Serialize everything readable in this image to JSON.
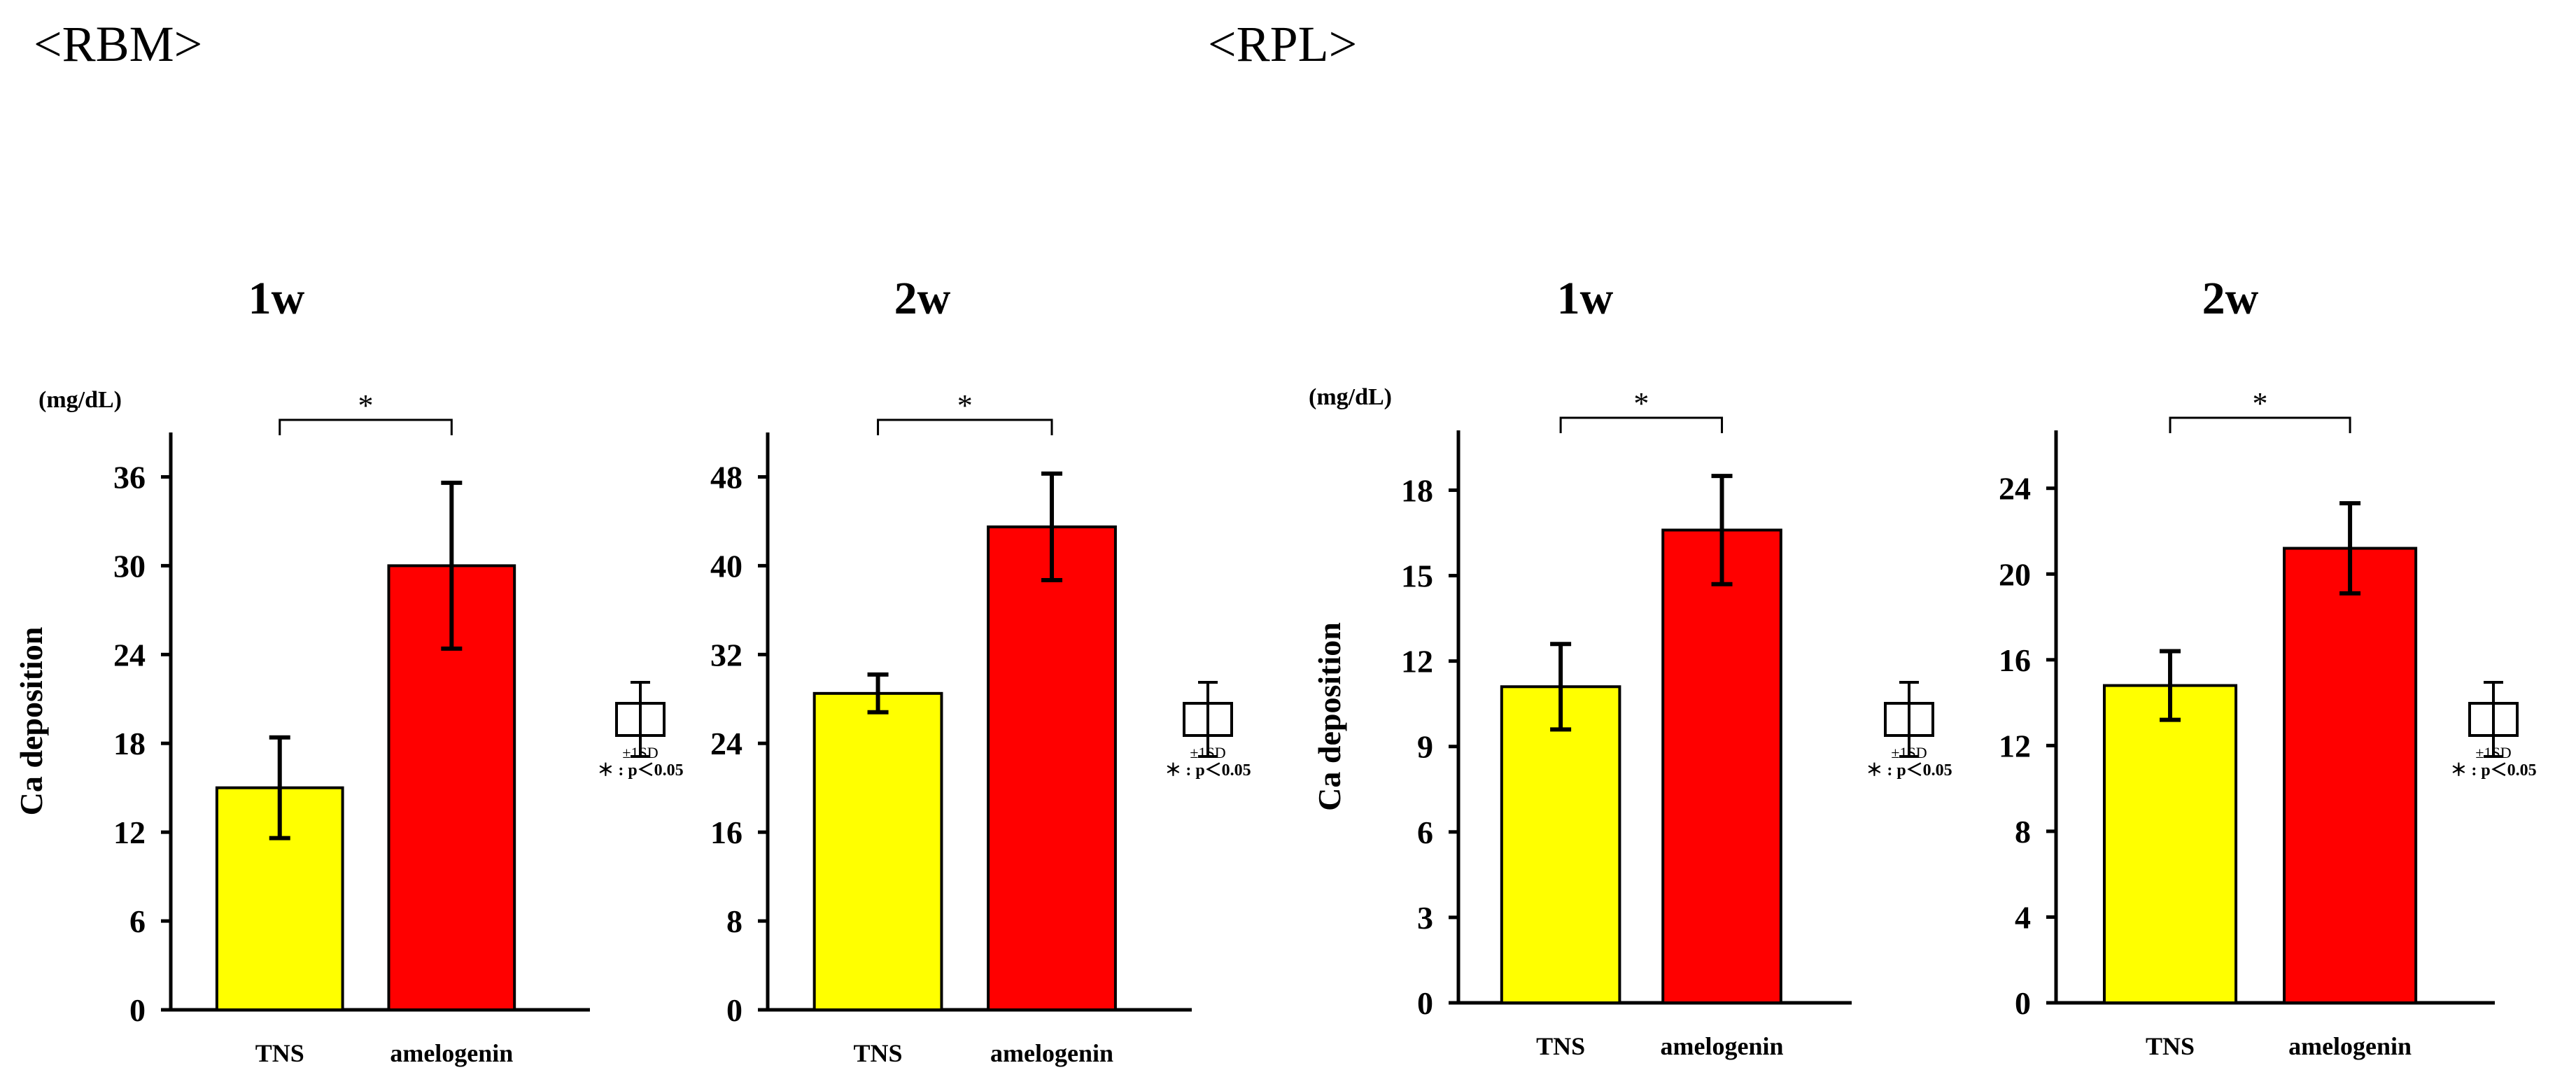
{
  "sections": [
    {
      "title": "<RBM>"
    },
    {
      "title": "<RPL>"
    }
  ],
  "legend": {
    "sd_label": "±1SD",
    "sig_label": "＊ : p＜0.05"
  },
  "chart_data": [
    {
      "type": "bar",
      "section": "<RBM>",
      "title": "1w",
      "categories": [
        "TNS",
        "amelogenin"
      ],
      "values": [
        15.0,
        30.0
      ],
      "errors": [
        3.4,
        5.6
      ],
      "colors": [
        "#ffff00",
        "#ff0000"
      ],
      "ylabel": "Ca deposition",
      "unit": "(mg/dL)",
      "ylim": [
        0,
        39
      ],
      "yticks": [
        0,
        6,
        12,
        18,
        24,
        30,
        36
      ],
      "significance": "*"
    },
    {
      "type": "bar",
      "section": "<RBM>",
      "title": "2w",
      "categories": [
        "TNS",
        "amelogenin"
      ],
      "values": [
        28.5,
        43.5
      ],
      "errors": [
        1.7,
        4.8
      ],
      "colors": [
        "#ffff00",
        "#ff0000"
      ],
      "ylabel": "",
      "unit": "",
      "ylim": [
        0,
        52
      ],
      "yticks": [
        0,
        8,
        16,
        24,
        32,
        40,
        48
      ],
      "significance": "*"
    },
    {
      "type": "bar",
      "section": "<RPL>",
      "title": "1w",
      "categories": [
        "TNS",
        "amelogenin"
      ],
      "values": [
        11.1,
        16.6
      ],
      "errors": [
        1.5,
        1.9
      ],
      "colors": [
        "#ffff00",
        "#ff0000"
      ],
      "ylabel": "Ca deposition",
      "unit": "(mg/dL)",
      "ylim": [
        0,
        20.1
      ],
      "yticks": [
        0,
        3,
        6,
        9,
        12,
        15,
        18
      ],
      "significance": "*"
    },
    {
      "type": "bar",
      "section": "<RPL>",
      "title": "2w",
      "categories": [
        "TNS",
        "amelogenin"
      ],
      "values": [
        14.8,
        21.2
      ],
      "errors": [
        1.6,
        2.1
      ],
      "colors": [
        "#ffff00",
        "#ff0000"
      ],
      "ylabel": "",
      "unit": "",
      "ylim": [
        0,
        26.7
      ],
      "yticks": [
        0,
        4,
        8,
        12,
        16,
        20,
        24
      ],
      "significance": "*"
    }
  ]
}
